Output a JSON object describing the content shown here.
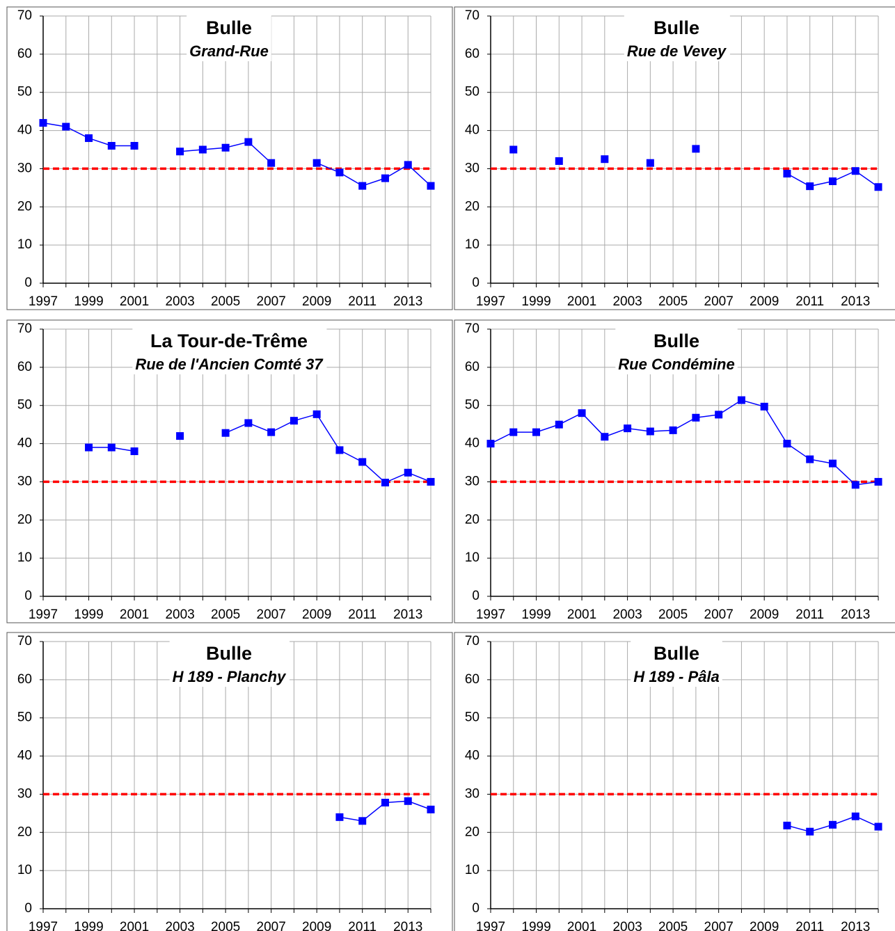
{
  "chart_data": [
    {
      "type": "line",
      "title": "Bulle",
      "subtitle": "Grand-Rue",
      "x": [
        1997,
        1998,
        1999,
        2000,
        2001,
        2002,
        2003,
        2004,
        2005,
        2006,
        2007,
        2008,
        2009,
        2010,
        2011,
        2012,
        2013,
        2014
      ],
      "values": [
        42,
        41,
        38,
        36,
        36,
        null,
        34.5,
        35,
        35.5,
        37,
        31.5,
        null,
        31.5,
        29,
        25.5,
        27.5,
        31,
        25.5
      ],
      "color": "#0000ff",
      "xlim": [
        1997,
        2014
      ],
      "xticks": [
        1997,
        1999,
        2001,
        2003,
        2005,
        2007,
        2009,
        2011,
        2013
      ],
      "x_minor_ticks": [
        1998,
        2000,
        2002,
        2004,
        2006,
        2008,
        2010,
        2012,
        2014
      ],
      "ylim": [
        0,
        70
      ],
      "yticks": [
        0,
        10,
        20,
        30,
        40,
        50,
        60,
        70
      ],
      "grid": true,
      "reference_line": {
        "value": 30,
        "color": "#ff0000"
      }
    },
    {
      "type": "line",
      "title": "Bulle",
      "subtitle": "Rue de Vevey",
      "x": [
        1997,
        1998,
        1999,
        2000,
        2001,
        2002,
        2003,
        2004,
        2005,
        2006,
        2007,
        2008,
        2009,
        2010,
        2011,
        2012,
        2013,
        2014
      ],
      "values": [
        null,
        35,
        null,
        32,
        null,
        32.5,
        null,
        31.5,
        null,
        35.2,
        null,
        null,
        null,
        28.7,
        25.4,
        26.7,
        29.4,
        25.2
      ],
      "color": "#0000ff",
      "xlim": [
        1997,
        2014
      ],
      "xticks": [
        1997,
        1999,
        2001,
        2003,
        2005,
        2007,
        2009,
        2011,
        2013
      ],
      "x_minor_ticks": [
        1998,
        2000,
        2002,
        2004,
        2006,
        2008,
        2010,
        2012,
        2014
      ],
      "ylim": [
        0,
        70
      ],
      "yticks": [
        0,
        10,
        20,
        30,
        40,
        50,
        60,
        70
      ],
      "grid": true,
      "reference_line": {
        "value": 30,
        "color": "#ff0000"
      }
    },
    {
      "type": "line",
      "title": "La Tour-de-Trême",
      "subtitle": "Rue de l'Ancien Comté 37",
      "x": [
        1997,
        1998,
        1999,
        2000,
        2001,
        2002,
        2003,
        2004,
        2005,
        2006,
        2007,
        2008,
        2009,
        2010,
        2011,
        2012,
        2013,
        2014
      ],
      "values": [
        null,
        null,
        39,
        39,
        38,
        null,
        42,
        null,
        42.8,
        45.4,
        43,
        46,
        47.7,
        38.3,
        35.2,
        29.8,
        32.4,
        30
      ],
      "color": "#0000ff",
      "xlim": [
        1997,
        2014
      ],
      "xticks": [
        1997,
        1999,
        2001,
        2003,
        2005,
        2007,
        2009,
        2011,
        2013
      ],
      "x_minor_ticks": [
        1998,
        2000,
        2002,
        2004,
        2006,
        2008,
        2010,
        2012,
        2014
      ],
      "ylim": [
        0,
        70
      ],
      "yticks": [
        0,
        10,
        20,
        30,
        40,
        50,
        60,
        70
      ],
      "grid": true,
      "reference_line": {
        "value": 30,
        "color": "#ff0000"
      }
    },
    {
      "type": "line",
      "title": "Bulle",
      "subtitle": "Rue Condémine",
      "x": [
        1997,
        1998,
        1999,
        2000,
        2001,
        2002,
        2003,
        2004,
        2005,
        2006,
        2007,
        2008,
        2009,
        2010,
        2011,
        2012,
        2013,
        2014
      ],
      "values": [
        40,
        43,
        43,
        45,
        48,
        41.8,
        44,
        43.2,
        43.5,
        46.8,
        47.6,
        51.4,
        49.7,
        40,
        35.9,
        34.8,
        29.2,
        30
      ],
      "color": "#0000ff",
      "xlim": [
        1997,
        2014
      ],
      "xticks": [
        1997,
        1999,
        2001,
        2003,
        2005,
        2007,
        2009,
        2011,
        2013
      ],
      "x_minor_ticks": [
        1998,
        2000,
        2002,
        2004,
        2006,
        2008,
        2010,
        2012,
        2014
      ],
      "ylim": [
        0,
        70
      ],
      "yticks": [
        0,
        10,
        20,
        30,
        40,
        50,
        60,
        70
      ],
      "grid": true,
      "reference_line": {
        "value": 30,
        "color": "#ff0000"
      }
    },
    {
      "type": "line",
      "title": "Bulle",
      "subtitle": "H 189 - Planchy",
      "x": [
        1997,
        1998,
        1999,
        2000,
        2001,
        2002,
        2003,
        2004,
        2005,
        2006,
        2007,
        2008,
        2009,
        2010,
        2011,
        2012,
        2013,
        2014
      ],
      "values": [
        null,
        null,
        null,
        null,
        null,
        null,
        null,
        null,
        null,
        null,
        null,
        null,
        null,
        24,
        23,
        27.8,
        28.2,
        26
      ],
      "color": "#0000ff",
      "xlim": [
        1997,
        2014
      ],
      "xticks": [
        1997,
        1999,
        2001,
        2003,
        2005,
        2007,
        2009,
        2011,
        2013
      ],
      "x_minor_ticks": [
        1998,
        2000,
        2002,
        2004,
        2006,
        2008,
        2010,
        2012,
        2014
      ],
      "ylim": [
        0,
        70
      ],
      "yticks": [
        0,
        10,
        20,
        30,
        40,
        50,
        60,
        70
      ],
      "grid": true,
      "reference_line": {
        "value": 30,
        "color": "#ff0000"
      }
    },
    {
      "type": "line",
      "title": "Bulle",
      "subtitle": "H 189 - Pâla",
      "x": [
        1997,
        1998,
        1999,
        2000,
        2001,
        2002,
        2003,
        2004,
        2005,
        2006,
        2007,
        2008,
        2009,
        2010,
        2011,
        2012,
        2013,
        2014
      ],
      "values": [
        null,
        null,
        null,
        null,
        null,
        null,
        null,
        null,
        null,
        null,
        null,
        null,
        null,
        21.8,
        20.2,
        22,
        24.2,
        21.5
      ],
      "color": "#0000ff",
      "xlim": [
        1997,
        2014
      ],
      "xticks": [
        1997,
        1999,
        2001,
        2003,
        2005,
        2007,
        2009,
        2011,
        2013
      ],
      "x_minor_ticks": [
        1998,
        2000,
        2002,
        2004,
        2006,
        2008,
        2010,
        2012,
        2014
      ],
      "ylim": [
        0,
        70
      ],
      "yticks": [
        0,
        10,
        20,
        30,
        40,
        50,
        60,
        70
      ],
      "grid": true,
      "reference_line": {
        "value": 30,
        "color": "#ff0000"
      }
    }
  ]
}
